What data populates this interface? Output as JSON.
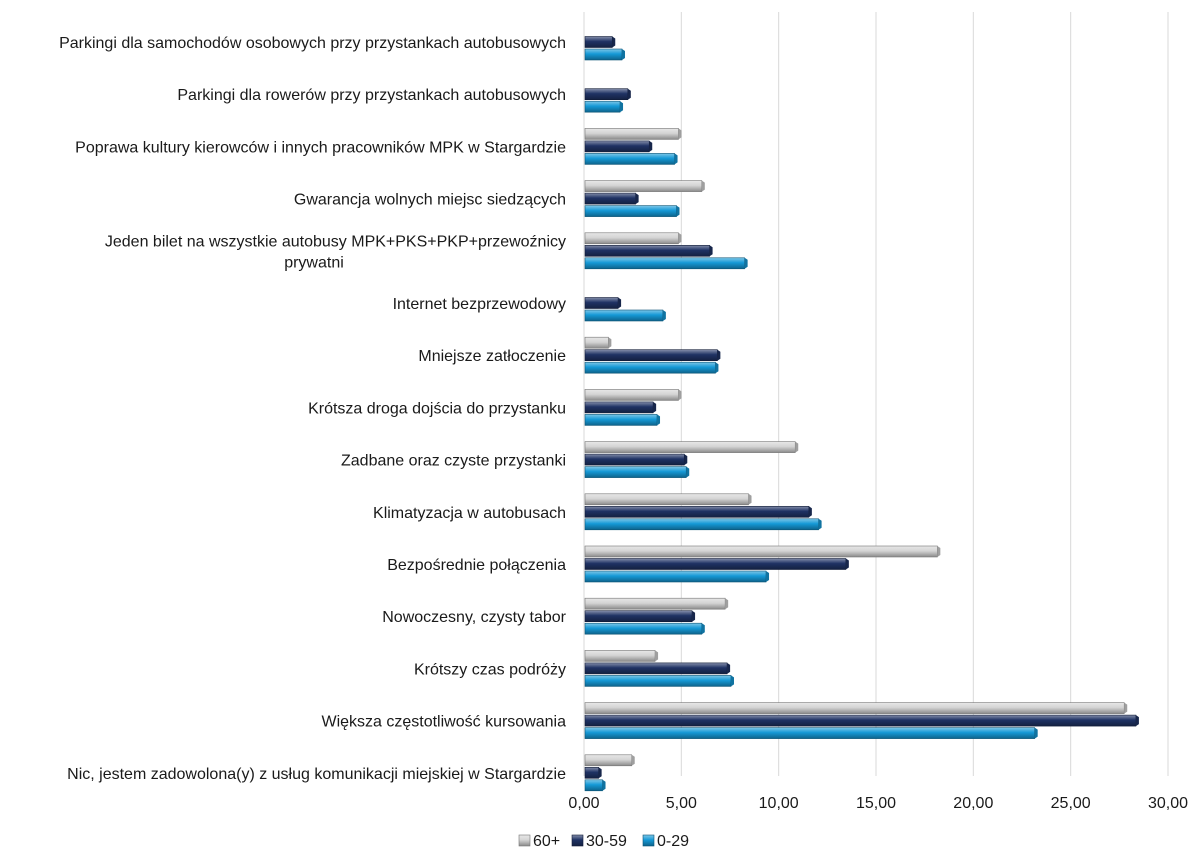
{
  "chart_data": {
    "type": "bar",
    "orientation": "horizontal",
    "categories": [
      "Parkingi dla samochodów osobowych przy przystankach autobusowych",
      "Parkingi dla rowerów przy przystankach autobusowych",
      "Poprawa kultury kierowców i innych pracowników MPK w Stargardzie",
      "Gwarancja wolnych miejsc siedzących",
      "Jeden bilet na wszystkie autobusy MPK+PKS+PKP+przewoźnicy prywatni",
      "Internet bezprzewodowy",
      "Mniejsze zatłoczenie",
      "Krótsza droga dojścia do przystanku",
      "Zadbane oraz czyste przystanki",
      "Klimatyzacja w autobusach",
      "Bezpośrednie połączenia",
      "Nowoczesny, czysty tabor",
      "Krótszy czas podróży",
      "Większa częstotliwość kursowania",
      "Nic, jestem zadowolona(y) z usług komunikacji miejskiej w Stargardzie"
    ],
    "category_lines": [
      [
        "Parkingi dla samochodów osobowych przy przystankach autobusowych"
      ],
      [
        "Parkingi dla rowerów przy przystankach autobusowych"
      ],
      [
        "Poprawa kultury kierowców i innych pracowników MPK w Stargardzie"
      ],
      [
        "Gwarancja wolnych miejsc siedzących"
      ],
      [
        "Jeden bilet na wszystkie autobusy MPK+PKS+PKP+przewoźnicy",
        "prywatni"
      ],
      [
        "Internet bezprzewodowy"
      ],
      [
        "Mniejsze zatłoczenie"
      ],
      [
        "Krótsza droga dojścia do przystanku"
      ],
      [
        "Zadbane oraz czyste przystanki"
      ],
      [
        "Klimatyzacja w autobusach"
      ],
      [
        "Bezpośrednie połączenia"
      ],
      [
        "Nowoczesny, czysty tabor"
      ],
      [
        "Krótszy czas podróży"
      ],
      [
        "Większa częstotliwość kursowania"
      ],
      [
        "Nic, jestem zadowolona(y) z usług komunikacji miejskiej w Stargardzie"
      ]
    ],
    "series": [
      {
        "name": "60+",
        "color": "#d4d4d4",
        "values": [
          0.0,
          0.0,
          4.8,
          6.0,
          4.8,
          0.0,
          1.2,
          4.8,
          10.8,
          8.4,
          18.1,
          7.2,
          3.6,
          27.7,
          2.4
        ]
      },
      {
        "name": "30-59",
        "color": "#1f3264",
        "values": [
          1.4,
          2.2,
          3.3,
          2.6,
          6.4,
          1.7,
          6.8,
          3.5,
          5.1,
          11.5,
          13.4,
          5.5,
          7.3,
          28.3,
          0.7
        ]
      },
      {
        "name": "0-29",
        "color": "#1599d6",
        "values": [
          1.9,
          1.8,
          4.6,
          4.7,
          8.2,
          4.0,
          6.7,
          3.7,
          5.2,
          12.0,
          9.3,
          6.0,
          7.5,
          23.1,
          0.9
        ]
      }
    ],
    "xlim": [
      0,
      30
    ],
    "xticks": [
      0,
      5,
      10,
      15,
      20,
      25,
      30
    ],
    "xtick_labels": [
      "0,00",
      "5,00",
      "10,00",
      "15,00",
      "20,00",
      "25,00",
      "30,00"
    ],
    "grid": true,
    "legend_position": "bottom",
    "title": "",
    "xlabel": "",
    "ylabel": ""
  }
}
